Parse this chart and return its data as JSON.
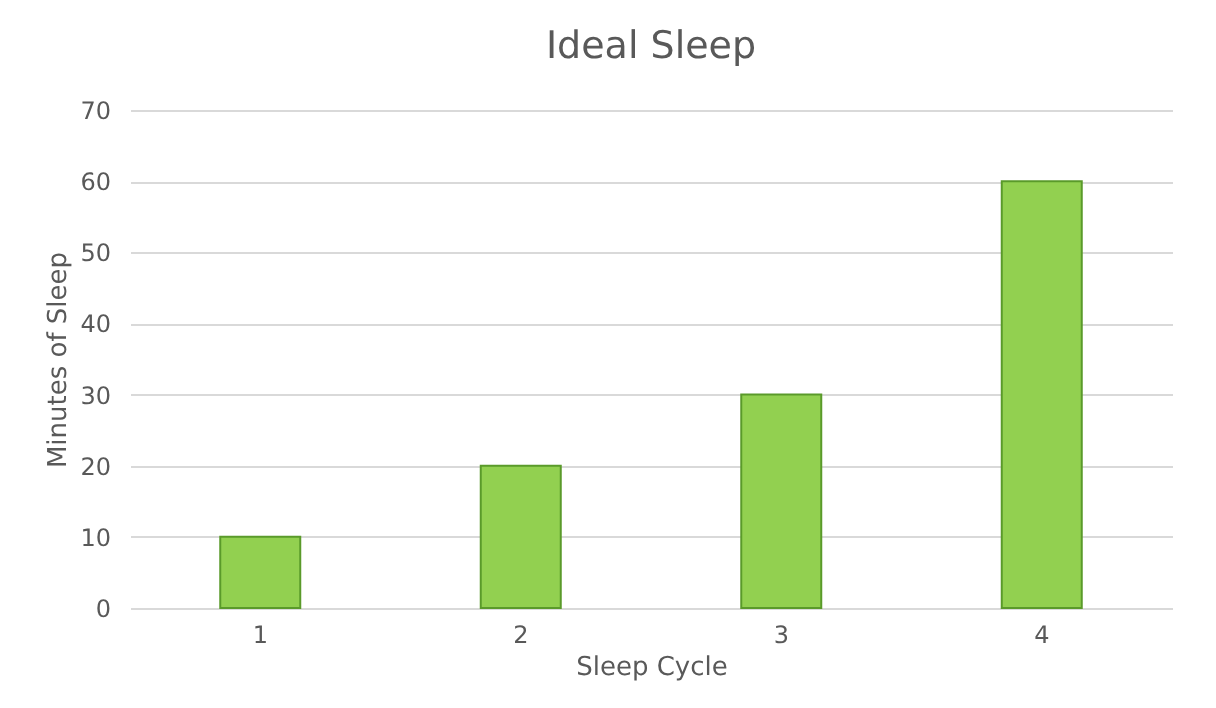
{
  "chart_data": {
    "type": "bar",
    "title": "Ideal Sleep",
    "xlabel": "Sleep Cycle",
    "ylabel": "Minutes of Sleep",
    "categories": [
      "1",
      "2",
      "3",
      "4"
    ],
    "values": [
      10,
      20,
      30,
      60
    ],
    "color": "#92d050",
    "ylim": [
      0,
      70
    ],
    "yticks": [
      0,
      10,
      20,
      30,
      40,
      50,
      60,
      70
    ],
    "grid": "y"
  }
}
